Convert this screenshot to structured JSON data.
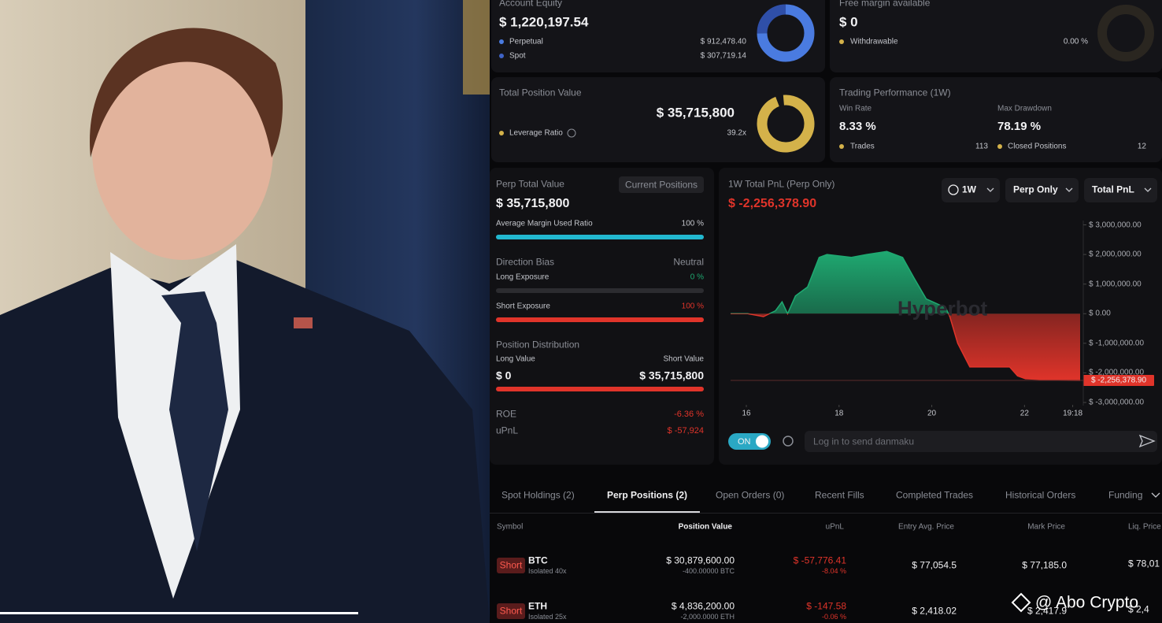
{
  "account_equity": {
    "title": "Account Equity",
    "value": "$ 1,220,197.54",
    "perpetual": {
      "name": "Perpetual",
      "value": 912478.4,
      "label": "$ 912,478.40"
    },
    "spot": {
      "name": "Spot",
      "value": 307719.14,
      "label": "$ 307,719.14"
    }
  },
  "free_margin": {
    "title": "Free margin available",
    "value": "$ 0",
    "withdrawable": {
      "name": "Withdrawable",
      "value": "0.00 %"
    }
  },
  "total_position": {
    "title": "Total Position Value",
    "value": "$ 35,715,800",
    "leverage": {
      "name": "Leverage Ratio",
      "value": "39.2x"
    }
  },
  "performance": {
    "title": "Trading Performance (1W)",
    "win_rate": {
      "name": "Win Rate",
      "value": "8.33 %"
    },
    "max_drawdown": {
      "name": "Max Drawdown",
      "value": "78.19 %"
    },
    "trades": {
      "name": "Trades",
      "value": 113
    },
    "closed": {
      "name": "Closed Positions",
      "value": 12
    }
  },
  "perp_panel": {
    "title": "Perp Total Value",
    "button": "Current Positions",
    "value": "$ 35,715,800",
    "margin_ratio": {
      "name": "Average Margin Used Ratio",
      "value": 100,
      "label": "100 %"
    },
    "direction_bias": {
      "name": "Direction Bias",
      "value": "Neutral"
    },
    "long_exposure": {
      "name": "Long Exposure",
      "value": 0,
      "label": "0 %"
    },
    "short_exposure": {
      "name": "Short Exposure",
      "value": 100,
      "label": "100 %"
    },
    "distribution": {
      "title": "Position Distribution",
      "long": {
        "name": "Long Value",
        "value": 0,
        "label": "$ 0"
      },
      "short": {
        "name": "Short Value",
        "value": 35715800,
        "label": "$ 35,715,800"
      }
    },
    "roe": {
      "name": "ROE",
      "value": "-6.36 %"
    },
    "upnl": {
      "name": "uPnL",
      "value": "$ -57,924"
    }
  },
  "pnl_chart": {
    "type": "area",
    "title": "1W Total PnL (Perp Only)",
    "current": "$ -2,256,378.90",
    "filters": [
      "1W",
      "Perp Only",
      "Total PnL"
    ],
    "watermark": "Hyperbot",
    "x": [
      15.66,
      16.03,
      16.37,
      16.63,
      16.77,
      16.89,
      17.06,
      17.32,
      17.57,
      17.74,
      18.26,
      18.6,
      19.03,
      19.37,
      19.62,
      19.88,
      20.3,
      20.39,
      20.56,
      20.82,
      21.68,
      21.85,
      22.02,
      22.7,
      23.2
    ],
    "values": [
      0,
      0,
      -100000,
      100000,
      400000,
      0,
      600000,
      900000,
      1900000,
      2000000,
      1900000,
      2000000,
      2100000,
      1900000,
      1200000,
      500000,
      200000,
      -100000,
      -1000000,
      -1800000,
      -1800000,
      -2100000,
      -2200000,
      -2250000,
      -2256378.9
    ],
    "xlim": [
      15.66,
      23.2
    ],
    "xticks": [
      16,
      18,
      20,
      22,
      {
        "value": 23.04,
        "label": "19:18"
      }
    ],
    "ylim": [
      -3080000,
      3120000
    ],
    "yticks": [
      {
        "value": 3000000,
        "label": "$ 3,000,000.00"
      },
      {
        "value": 2000000,
        "label": "$ 2,000,000.00"
      },
      {
        "value": 1000000,
        "label": "$ 1,000,000.00"
      },
      {
        "value": 0,
        "label": "$ 0.00"
      },
      {
        "value": -1000000,
        "label": "$ -1,000,000.00"
      },
      {
        "value": -2000000,
        "label": "$ -2,000,000.00"
      },
      {
        "value": -3000000,
        "label": "$ -3,000,000.00"
      }
    ],
    "last_value_label": "$ -2,256,378.90",
    "positive_color": "#1fa971",
    "negative_color": "#e0342a"
  },
  "danmaku": {
    "toggle": "ON",
    "placeholder": "Log in to send danmaku"
  },
  "tabs": [
    "Spot Holdings (2)",
    "Perp Positions (2)",
    "Open Orders (0)",
    "Recent Fills",
    "Completed Trades",
    "Historical Orders",
    "Funding"
  ],
  "active_tab": 1,
  "table": {
    "columns": [
      "Symbol",
      "Position Value",
      "uPnL",
      "Entry Avg. Price",
      "Mark Price",
      "Liq. Price"
    ],
    "rows": [
      {
        "side": "Short",
        "symbol": "BTC",
        "margin": "Isolated 40x",
        "position_value": "$ 30,879,600.00",
        "size": "-400.00000 BTC",
        "upnl": "$ -57,776.41",
        "upnl_pct": "-8.04 %",
        "entry": "$ 77,054.5",
        "mark": "$ 77,185.0",
        "liq": "$ 78,01"
      },
      {
        "side": "Short",
        "symbol": "ETH",
        "margin": "Isolated 25x",
        "position_value": "$ 4,836,200.00",
        "size": "-2,000.0000 ETH",
        "upnl": "$ -147.58",
        "upnl_pct": "-0.06 %",
        "entry": "$ 2,418.02",
        "mark": "$ 2,417.9",
        "liq": "$ 2,4"
      }
    ]
  },
  "watermark": "@ Abo Crypto"
}
